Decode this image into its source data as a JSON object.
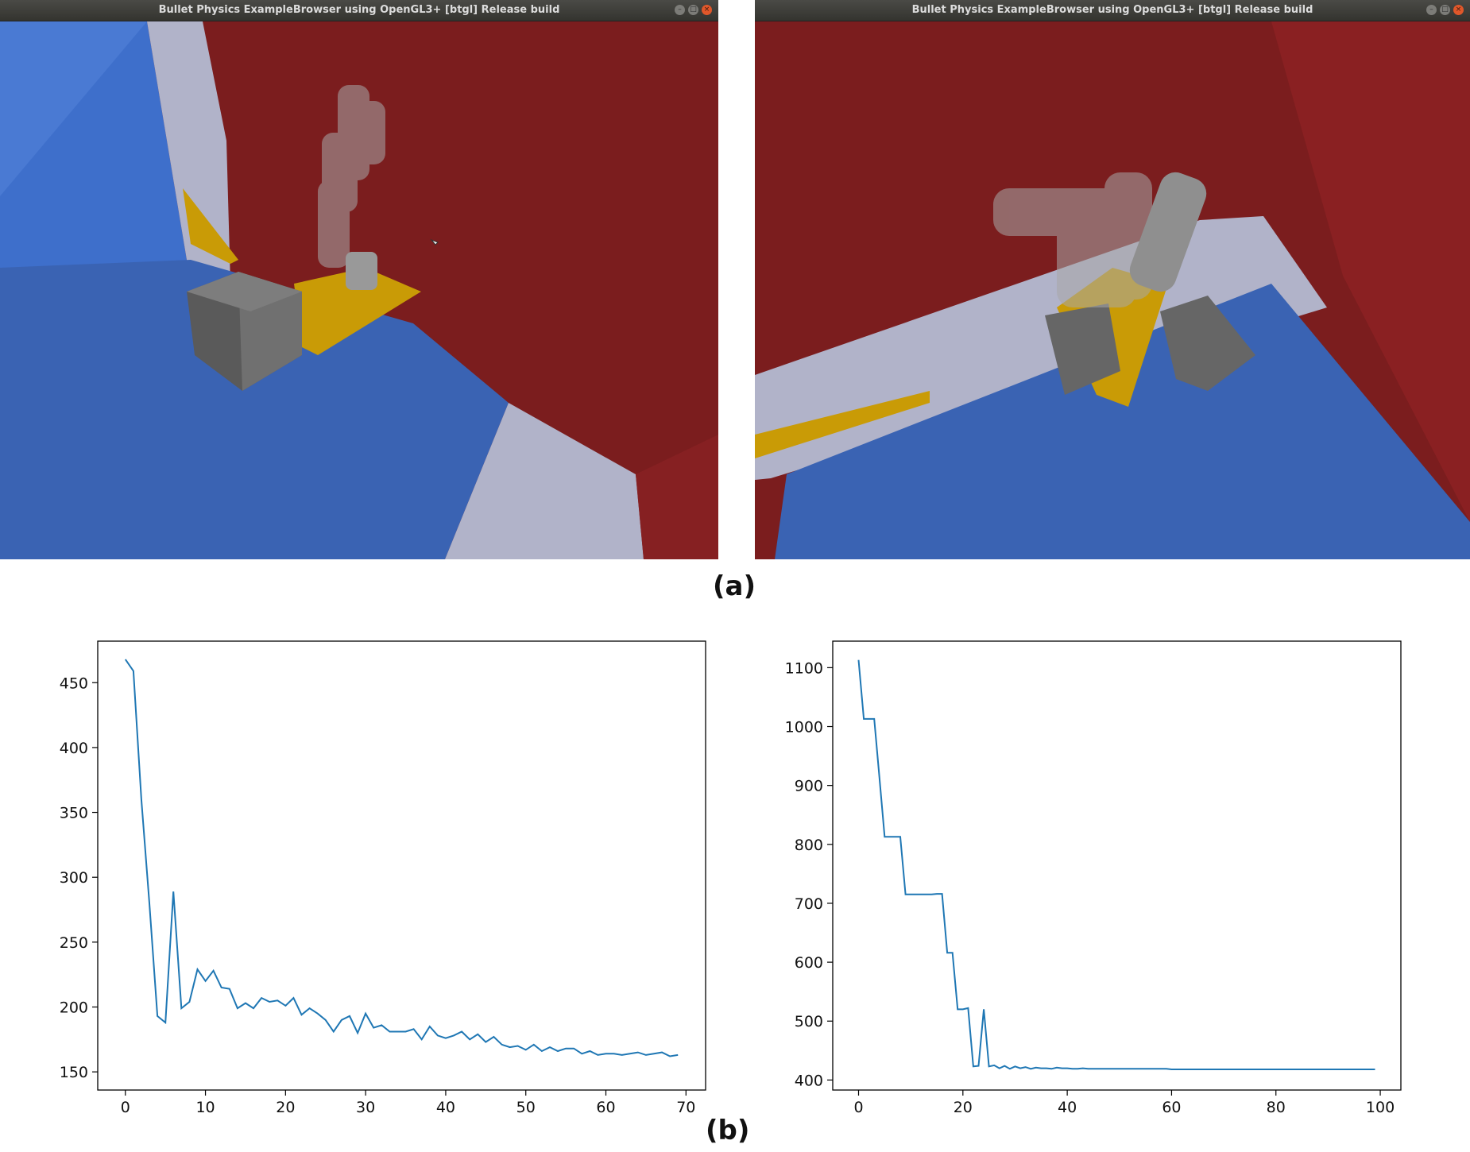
{
  "windows": [
    {
      "title": "Bullet Physics ExampleBrowser using OpenGL3+ [btgl] Release build",
      "buttons": [
        "minimize",
        "maximize",
        "close"
      ]
    },
    {
      "title": "Bullet Physics ExampleBrowser using OpenGL3+ [btgl] Release build",
      "buttons": [
        "minimize",
        "maximize",
        "close"
      ]
    }
  ],
  "captions": {
    "a": "(a)",
    "b": "(b)"
  },
  "colors": {
    "wall_red": "#7b1d1e",
    "floor_blue": "#3a63b3",
    "light_wall": "#b1b3c9",
    "platform_yellow": "#c99b06",
    "box_gray": "#6a6a6a",
    "line_blue": "#1f77b4"
  },
  "chart_data": [
    {
      "type": "line",
      "title": "",
      "xlabel": "",
      "ylabel": "",
      "xlim": [
        -3.45,
        72.45
      ],
      "ylim": [
        136.0,
        482.0
      ],
      "xticks": [
        0,
        10,
        20,
        30,
        40,
        50,
        60,
        70
      ],
      "yticks": [
        150,
        200,
        250,
        300,
        350,
        400,
        450
      ],
      "series": [
        {
          "x": [
            0,
            1,
            2,
            3,
            4,
            5,
            6,
            7,
            8,
            9,
            10,
            11,
            12,
            13,
            14,
            15,
            16,
            17,
            18,
            19,
            20,
            21,
            22,
            23,
            24,
            25,
            26,
            27,
            28,
            29,
            30,
            31,
            32,
            33,
            34,
            35,
            36,
            37,
            38,
            39,
            40,
            41,
            42,
            43,
            44,
            45,
            46,
            47,
            48,
            49,
            50,
            51,
            52,
            53,
            54,
            55,
            56,
            57,
            58,
            59,
            60,
            61,
            62,
            63,
            64,
            65,
            66,
            67,
            68,
            69
          ],
          "y": [
            468,
            459,
            360,
            280,
            193,
            188,
            289,
            199,
            204,
            229,
            220,
            228,
            215,
            214,
            199,
            203,
            199,
            207,
            204,
            205,
            201,
            207,
            194,
            199,
            195,
            190,
            181,
            190,
            193,
            180,
            195,
            184,
            186,
            181,
            181,
            181,
            183,
            175,
            185,
            178,
            176,
            178,
            181,
            175,
            179,
            173,
            177,
            171,
            169,
            170,
            167,
            171,
            166,
            169,
            166,
            168,
            168,
            164,
            166,
            163,
            164,
            164,
            163,
            164,
            165,
            163,
            164,
            165,
            162,
            163
          ]
        }
      ]
    },
    {
      "type": "line",
      "title": "",
      "xlabel": "",
      "ylabel": "",
      "xlim": [
        -4.95,
        103.95
      ],
      "ylim": [
        383.0,
        1145.0
      ],
      "xticks": [
        0,
        20,
        40,
        60,
        80,
        100
      ],
      "yticks": [
        400,
        500,
        600,
        700,
        800,
        900,
        1000,
        1100
      ],
      "series": [
        {
          "x": [
            0,
            1,
            2,
            3,
            4,
            5,
            6,
            7,
            8,
            9,
            10,
            11,
            12,
            13,
            14,
            15,
            16,
            17,
            18,
            19,
            20,
            21,
            22,
            23,
            24,
            25,
            26,
            27,
            28,
            29,
            30,
            31,
            32,
            33,
            34,
            35,
            36,
            37,
            38,
            39,
            40,
            41,
            42,
            43,
            44,
            45,
            46,
            47,
            48,
            49,
            50,
            51,
            52,
            53,
            54,
            55,
            56,
            57,
            58,
            59,
            60,
            61,
            62,
            63,
            64,
            65,
            66,
            67,
            68,
            69,
            70,
            71,
            72,
            73,
            74,
            75,
            76,
            77,
            78,
            79,
            80,
            81,
            82,
            83,
            84,
            85,
            86,
            87,
            88,
            89,
            90,
            91,
            92,
            93,
            94,
            95,
            96,
            97,
            98,
            99
          ],
          "y": [
            1113,
            1013,
            1013,
            1013,
            913,
            813,
            813,
            813,
            813,
            715,
            715,
            715,
            715,
            715,
            715,
            716,
            716,
            616,
            616,
            520,
            520,
            522,
            423,
            424,
            520,
            423,
            425,
            420,
            424,
            419,
            423,
            420,
            422,
            419,
            421,
            420,
            420,
            419,
            421,
            420,
            420,
            419,
            419,
            420,
            419,
            419,
            419,
            419,
            419,
            419,
            419,
            419,
            419,
            419,
            419,
            419,
            419,
            419,
            419,
            419,
            418,
            418,
            418,
            418,
            418,
            418,
            418,
            418,
            418,
            418,
            418,
            418,
            418,
            418,
            418,
            418,
            418,
            418,
            418,
            418,
            418,
            418,
            418,
            418,
            418,
            418,
            418,
            418,
            418,
            418,
            418,
            418,
            418,
            418,
            418,
            418,
            418,
            418,
            418,
            418
          ]
        }
      ]
    }
  ]
}
